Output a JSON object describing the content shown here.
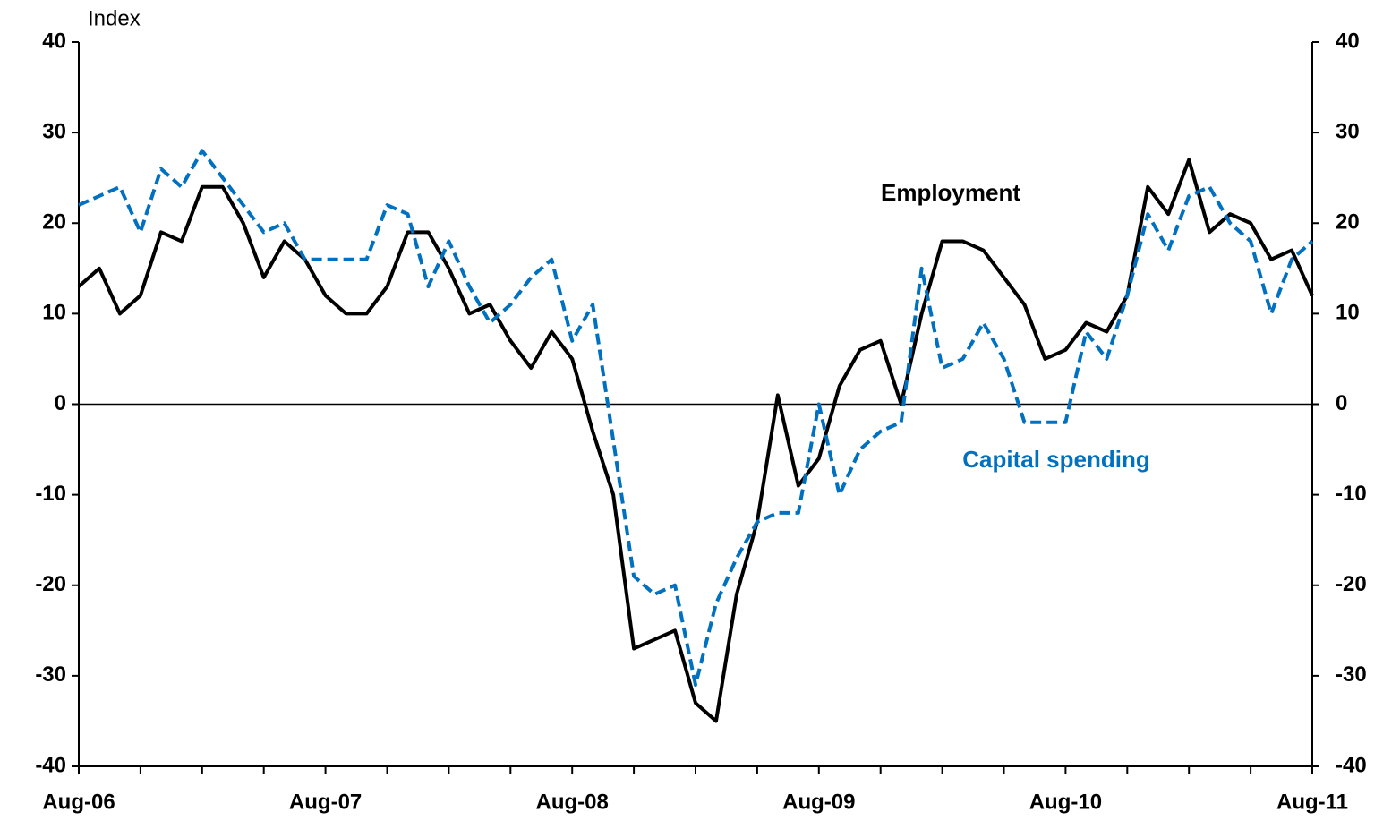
{
  "chart_data": {
    "type": "line",
    "y_label": "Index",
    "categories": [
      "Aug-06",
      null,
      null,
      null,
      null,
      null,
      null,
      null,
      null,
      null,
      null,
      null,
      "Aug-07",
      null,
      null,
      null,
      null,
      null,
      null,
      null,
      null,
      null,
      null,
      null,
      "Aug-08",
      null,
      null,
      null,
      null,
      null,
      null,
      null,
      null,
      null,
      null,
      null,
      "Aug-09",
      null,
      null,
      null,
      null,
      null,
      null,
      null,
      null,
      null,
      null,
      null,
      "Aug-10",
      null,
      null,
      null,
      null,
      null,
      null,
      null,
      null,
      null,
      null,
      null,
      "Aug-11"
    ],
    "series": [
      {
        "name": "Employment",
        "color": "#000000",
        "dash": false,
        "values": [
          13,
          15,
          10,
          12,
          19,
          18,
          24,
          24,
          20,
          14,
          18,
          16,
          12,
          10,
          10,
          13,
          19,
          19,
          15,
          10,
          11,
          7,
          4,
          8,
          5,
          -3,
          -10,
          -27,
          -26,
          -25,
          -33,
          -35,
          -21,
          -13,
          1,
          -9,
          -6,
          2,
          6,
          7,
          0,
          10,
          18,
          18,
          17,
          14,
          11,
          5,
          6,
          9,
          8,
          12,
          24,
          21,
          27,
          19,
          21,
          20,
          16,
          17,
          12
        ]
      },
      {
        "name": "Capital spending",
        "color": "#0070c0",
        "dash": true,
        "values": [
          22,
          23,
          24,
          19,
          26,
          24,
          28,
          25,
          22,
          19,
          20,
          16,
          16,
          16,
          16,
          22,
          21,
          13,
          18,
          13,
          9,
          11,
          14,
          16,
          7,
          11,
          -4,
          -19,
          -21,
          -20,
          -31,
          -22,
          -17,
          -13,
          -12,
          -12,
          0,
          -10,
          -5,
          -3,
          -2,
          15,
          4,
          5,
          9,
          5,
          -2,
          -2,
          -2,
          8,
          5,
          12,
          21,
          17,
          23,
          24,
          20,
          18,
          10,
          16,
          18
        ]
      }
    ],
    "ylim": [
      -40,
      40
    ],
    "yticks": [
      -40,
      -30,
      -20,
      -10,
      0,
      10,
      20,
      30,
      40
    ]
  }
}
